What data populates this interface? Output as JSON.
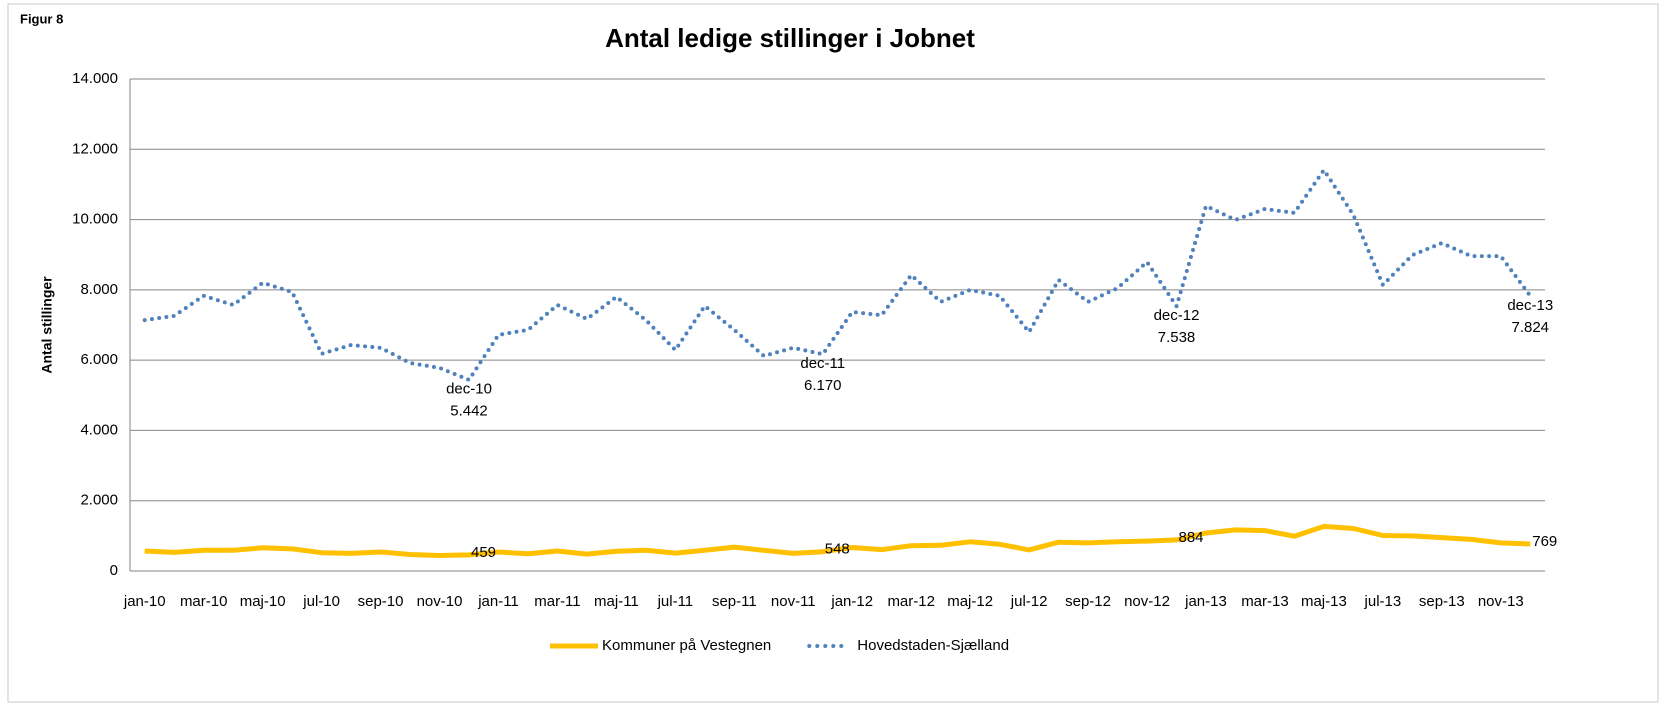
{
  "figure_label": "Figur 8",
  "chart_data": {
    "type": "line",
    "title": "Antal ledige stillinger i Jobnet",
    "ylabel": "Antal stillinger",
    "categories": [
      "jan-10",
      null,
      "mar-10",
      null,
      "maj-10",
      null,
      "jul-10",
      null,
      "sep-10",
      null,
      "nov-10",
      null,
      "jan-11",
      null,
      "mar-11",
      null,
      "maj-11",
      null,
      "jul-11",
      null,
      "sep-11",
      null,
      "nov-11",
      null,
      "jan-12",
      null,
      "mar-12",
      null,
      "maj-12",
      null,
      "jul-12",
      null,
      "sep-12",
      null,
      "nov-12",
      null,
      "jan-13",
      null,
      "mar-13",
      null,
      "maj-13",
      null,
      "jul-13",
      null,
      "sep-13",
      null,
      "nov-13",
      null
    ],
    "ylim": [
      0,
      14000
    ],
    "yticks": [
      0,
      {
        "value": 2000,
        "label": "2.000"
      },
      {
        "value": 4000,
        "label": "4.000"
      },
      {
        "value": 6000,
        "label": "6.000"
      },
      {
        "value": 8000,
        "label": "8.000"
      },
      {
        "value": 10000,
        "label": "10.000"
      },
      {
        "value": 12000,
        "label": "12.000"
      },
      {
        "value": 14000,
        "label": "14.000"
      }
    ],
    "grid": true,
    "legend": "bottom",
    "series": [
      {
        "name": "Kommuner på Vestegnen",
        "color": "#ffc000",
        "style": "solid",
        "values": [
          570,
          530,
          590,
          590,
          660,
          630,
          520,
          500,
          540,
          470,
          440,
          459,
          540,
          490,
          570,
          480,
          560,
          590,
          510,
          590,
          680,
          590,
          500,
          548,
          670,
          610,
          720,
          730,
          830,
          760,
          600,
          820,
          800,
          830,
          850,
          884,
          1080,
          1170,
          1150,
          990,
          1270,
          1210,
          1010,
          1000,
          950,
          900,
          800,
          769
        ],
        "value_labels": [
          null,
          null,
          null,
          null,
          null,
          null,
          null,
          null,
          null,
          null,
          null,
          "459",
          null,
          null,
          null,
          null,
          null,
          null,
          null,
          null,
          null,
          null,
          null,
          "548",
          null,
          null,
          null,
          null,
          null,
          null,
          null,
          null,
          null,
          null,
          null,
          "884",
          null,
          null,
          null,
          null,
          null,
          null,
          null,
          null,
          null,
          null,
          null,
          "769"
        ]
      },
      {
        "name": "Hovedstaden-Sjælland",
        "color": "#4f81bd",
        "style": "dotted",
        "values": [
          7140,
          7260,
          7830,
          7570,
          8200,
          7940,
          6180,
          6430,
          6350,
          5920,
          5780,
          5442,
          6720,
          6860,
          7570,
          7170,
          7800,
          7140,
          6290,
          7540,
          6860,
          6120,
          6350,
          6170,
          7370,
          7280,
          8420,
          7660,
          8000,
          7830,
          6800,
          8280,
          7660,
          8050,
          8790,
          7538,
          10390,
          9990,
          10300,
          10190,
          11410,
          10130,
          8140,
          8990,
          9330,
          8960,
          8960,
          7824
        ],
        "value_labels": [
          null,
          null,
          null,
          null,
          null,
          null,
          null,
          null,
          null,
          null,
          null,
          "5.442",
          null,
          null,
          null,
          null,
          null,
          null,
          null,
          null,
          null,
          null,
          null,
          "6.170",
          null,
          null,
          null,
          null,
          null,
          null,
          null,
          null,
          null,
          null,
          null,
          "7.538",
          null,
          null,
          null,
          null,
          null,
          null,
          null,
          null,
          null,
          null,
          null,
          "7.824"
        ],
        "value_label_names": [
          null,
          null,
          null,
          null,
          null,
          null,
          null,
          null,
          null,
          null,
          null,
          "dec-10",
          null,
          null,
          null,
          null,
          null,
          null,
          null,
          null,
          null,
          null,
          null,
          "dec-11",
          null,
          null,
          null,
          null,
          null,
          null,
          null,
          null,
          null,
          null,
          null,
          "dec-12",
          null,
          null,
          null,
          null,
          null,
          null,
          null,
          null,
          null,
          null,
          null,
          "dec-13"
        ]
      }
    ]
  }
}
